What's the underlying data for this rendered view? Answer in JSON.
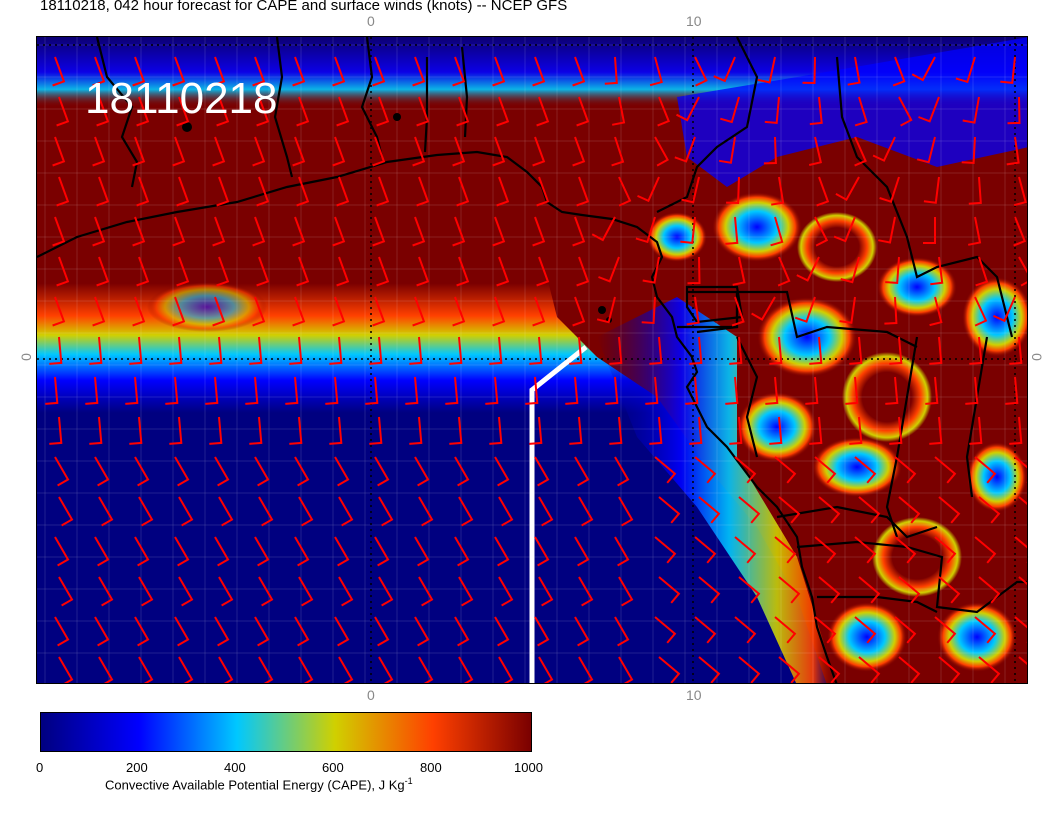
{
  "title": "18110218, 042 hour forecast for CAPE and surface winds (knots) -- NCEP GFS",
  "run_label": "18110218",
  "axis_ticks": {
    "top": [
      "0",
      "10"
    ],
    "bottom": [
      "0",
      "10"
    ],
    "left": "0",
    "right": "0"
  },
  "colorbar": {
    "ticks": [
      "0",
      "200",
      "400",
      "600",
      "800",
      "1000"
    ],
    "caption": "Convective Available Potential Energy (CAPE), J Kg",
    "caption_sup": "-1",
    "colors": [
      "#000080",
      "#0000ff",
      "#00c8ff",
      "#d0d000",
      "#ff4000",
      "#7a0000"
    ]
  },
  "colors": {
    "low_cape": "#000080",
    "high_cape": "#7a0000",
    "wind_barb": "#ff0000",
    "coastline": "#000000",
    "track": "#ffffff"
  }
}
